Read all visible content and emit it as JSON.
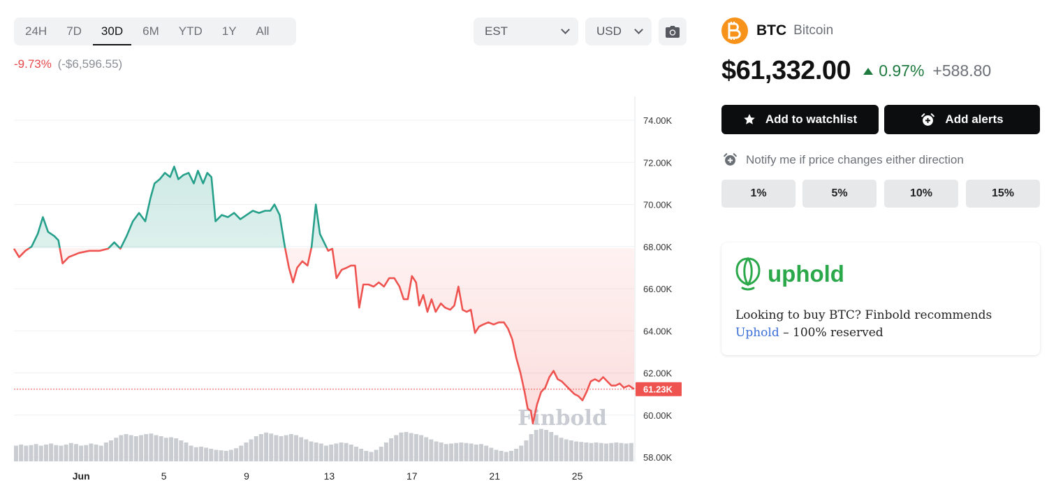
{
  "toolbar": {
    "ranges": [
      "24H",
      "7D",
      "30D",
      "6M",
      "YTD",
      "1Y",
      "All"
    ],
    "active_range": "30D",
    "timezone": "EST",
    "currency": "USD",
    "camera_icon": "camera-icon"
  },
  "period_change": {
    "percent": "-9.73%",
    "absolute": "(-$6,596.55)"
  },
  "coin": {
    "symbol": "BTC",
    "name": "Bitcoin",
    "logo_icon": "bitcoin-logo",
    "price": "$61,332.00",
    "change_pct": "0.97%",
    "change_abs": "+588.80"
  },
  "actions": {
    "watchlist_label": "Add to watchlist",
    "alerts_label": "Add alerts",
    "notify_text": "Notify me if price changes either direction",
    "thresholds": [
      "1%",
      "5%",
      "10%",
      "15%"
    ]
  },
  "promo": {
    "brand": "uphold",
    "text_before": "Looking to buy BTC? Finbold recommends",
    "link_text": "Uphold",
    "text_after": " – 100% reserved"
  },
  "colors": {
    "up": "#26a08a",
    "down": "#ef5350",
    "up_text": "#1f7a3f",
    "brand_orange": "#f7931a",
    "uphold_green": "#2ba84a"
  },
  "chart_data": {
    "type": "line",
    "yticks": [
      "74.00K",
      "72.00K",
      "70.00K",
      "68.00K",
      "66.00K",
      "64.00K",
      "62.00K",
      "60.00K",
      "58.00K"
    ],
    "ylim": [
      58000,
      74000
    ],
    "xticks": [
      {
        "label": "Jun",
        "x": 1
      },
      {
        "label": "5",
        "x": 5
      },
      {
        "label": "9",
        "x": 9
      },
      {
        "label": "13",
        "x": 13
      },
      {
        "label": "17",
        "x": 17
      },
      {
        "label": "21",
        "x": 21
      },
      {
        "label": "25",
        "x": 25
      }
    ],
    "xlim": [
      -2.25,
      27.75
    ],
    "baseline": 67930,
    "current_label": "61.23K",
    "current_value": 61230,
    "watermark": "Finbold",
    "points": [
      [
        -2.25,
        67900
      ],
      [
        -2.0,
        67500
      ],
      [
        -1.7,
        67800
      ],
      [
        -1.4,
        68000
      ],
      [
        -1.1,
        68600
      ],
      [
        -0.85,
        69400
      ],
      [
        -0.6,
        68700
      ],
      [
        -0.3,
        68500
      ],
      [
        -0.1,
        68300
      ],
      [
        0.1,
        67200
      ],
      [
        0.4,
        67500
      ],
      [
        0.9,
        67700
      ],
      [
        1.4,
        67800
      ],
      [
        1.9,
        67800
      ],
      [
        2.3,
        67900
      ],
      [
        2.6,
        68200
      ],
      [
        2.9,
        67900
      ],
      [
        3.2,
        68500
      ],
      [
        3.5,
        69200
      ],
      [
        3.8,
        69600
      ],
      [
        4.1,
        69200
      ],
      [
        4.35,
        70300
      ],
      [
        4.55,
        71000
      ],
      [
        4.8,
        71200
      ],
      [
        5.05,
        71500
      ],
      [
        5.3,
        71300
      ],
      [
        5.5,
        71800
      ],
      [
        5.7,
        71200
      ],
      [
        5.95,
        71400
      ],
      [
        6.2,
        71500
      ],
      [
        6.45,
        71000
      ],
      [
        6.65,
        71600
      ],
      [
        6.9,
        71000
      ],
      [
        7.1,
        71500
      ],
      [
        7.3,
        71300
      ],
      [
        7.5,
        69200
      ],
      [
        7.8,
        69500
      ],
      [
        8.1,
        69400
      ],
      [
        8.4,
        69600
      ],
      [
        8.7,
        69300
      ],
      [
        9.0,
        69500
      ],
      [
        9.3,
        69700
      ],
      [
        9.6,
        69600
      ],
      [
        9.9,
        69700
      ],
      [
        10.15,
        69700
      ],
      [
        10.35,
        70000
      ],
      [
        10.6,
        69500
      ],
      [
        10.85,
        68000
      ],
      [
        11.05,
        67000
      ],
      [
        11.25,
        66300
      ],
      [
        11.45,
        67000
      ],
      [
        11.7,
        67300
      ],
      [
        11.95,
        67100
      ],
      [
        12.15,
        68000
      ],
      [
        12.35,
        70000
      ],
      [
        12.55,
        68600
      ],
      [
        12.75,
        68200
      ],
      [
        12.95,
        67800
      ],
      [
        13.15,
        67900
      ],
      [
        13.35,
        66500
      ],
      [
        13.6,
        66900
      ],
      [
        13.85,
        67000
      ],
      [
        14.05,
        67100
      ],
      [
        14.25,
        67100
      ],
      [
        14.45,
        65100
      ],
      [
        14.65,
        66200
      ],
      [
        14.9,
        66200
      ],
      [
        15.15,
        66100
      ],
      [
        15.4,
        66300
      ],
      [
        15.65,
        66100
      ],
      [
        15.9,
        66500
      ],
      [
        16.15,
        66500
      ],
      [
        16.4,
        66100
      ],
      [
        16.6,
        65500
      ],
      [
        16.8,
        65500
      ],
      [
        17.0,
        66600
      ],
      [
        17.2,
        66300
      ],
      [
        17.35,
        65200
      ],
      [
        17.55,
        65700
      ],
      [
        17.75,
        64900
      ],
      [
        17.95,
        65500
      ],
      [
        18.15,
        64900
      ],
      [
        18.4,
        65300
      ],
      [
        18.6,
        65100
      ],
      [
        18.85,
        65000
      ],
      [
        19.05,
        65200
      ],
      [
        19.25,
        66100
      ],
      [
        19.45,
        65000
      ],
      [
        19.65,
        64900
      ],
      [
        19.85,
        65000
      ],
      [
        20.05,
        63900
      ],
      [
        20.25,
        64200
      ],
      [
        20.45,
        64300
      ],
      [
        20.7,
        64400
      ],
      [
        20.95,
        64300
      ],
      [
        21.2,
        64400
      ],
      [
        21.45,
        64400
      ],
      [
        21.65,
        64100
      ],
      [
        21.85,
        63600
      ],
      [
        22.05,
        62700
      ],
      [
        22.25,
        62000
      ],
      [
        22.45,
        61100
      ],
      [
        22.6,
        60300
      ],
      [
        22.75,
        60200
      ],
      [
        22.85,
        59600
      ],
      [
        23.05,
        60500
      ],
      [
        23.25,
        61100
      ],
      [
        23.45,
        61300
      ],
      [
        23.65,
        61800
      ],
      [
        23.85,
        62100
      ],
      [
        24.05,
        61700
      ],
      [
        24.25,
        61600
      ],
      [
        24.45,
        61400
      ],
      [
        24.65,
        61200
      ],
      [
        24.85,
        61000
      ],
      [
        25.05,
        60900
      ],
      [
        25.25,
        60700
      ],
      [
        25.45,
        61100
      ],
      [
        25.65,
        61600
      ],
      [
        25.85,
        61700
      ],
      [
        26.05,
        61600
      ],
      [
        26.25,
        61800
      ],
      [
        26.45,
        61600
      ],
      [
        26.65,
        61400
      ],
      [
        26.85,
        61400
      ],
      [
        27.05,
        61500
      ],
      [
        27.25,
        61300
      ],
      [
        27.5,
        61400
      ],
      [
        27.75,
        61230
      ]
    ],
    "volume": [
      0.3,
      0.32,
      0.3,
      0.31,
      0.33,
      0.3,
      0.32,
      0.34,
      0.31,
      0.3,
      0.32,
      0.35,
      0.33,
      0.3,
      0.31,
      0.34,
      0.32,
      0.3,
      0.36,
      0.4,
      0.45,
      0.5,
      0.52,
      0.5,
      0.48,
      0.5,
      0.52,
      0.53,
      0.5,
      0.48,
      0.45,
      0.46,
      0.44,
      0.4,
      0.36,
      0.3,
      0.27,
      0.28,
      0.26,
      0.24,
      0.22,
      0.21,
      0.2,
      0.22,
      0.25,
      0.3,
      0.36,
      0.42,
      0.48,
      0.52,
      0.55,
      0.53,
      0.5,
      0.48,
      0.5,
      0.52,
      0.5,
      0.46,
      0.42,
      0.38,
      0.36,
      0.34,
      0.3,
      0.32,
      0.34,
      0.36,
      0.35,
      0.32,
      0.28,
      0.24,
      0.2,
      0.18,
      0.22,
      0.28,
      0.36,
      0.44,
      0.5,
      0.55,
      0.56,
      0.54,
      0.52,
      0.5,
      0.46,
      0.42,
      0.38,
      0.36,
      0.33,
      0.34,
      0.35,
      0.36,
      0.35,
      0.34,
      0.32,
      0.33,
      0.3,
      0.26,
      0.22,
      0.2,
      0.18,
      0.2,
      0.24,
      0.3,
      0.4,
      0.52,
      0.6,
      0.62,
      0.6,
      0.56,
      0.5,
      0.45,
      0.42,
      0.4,
      0.38,
      0.37,
      0.36,
      0.35,
      0.36,
      0.35,
      0.34,
      0.35,
      0.36,
      0.35,
      0.34,
      0.35
    ]
  }
}
